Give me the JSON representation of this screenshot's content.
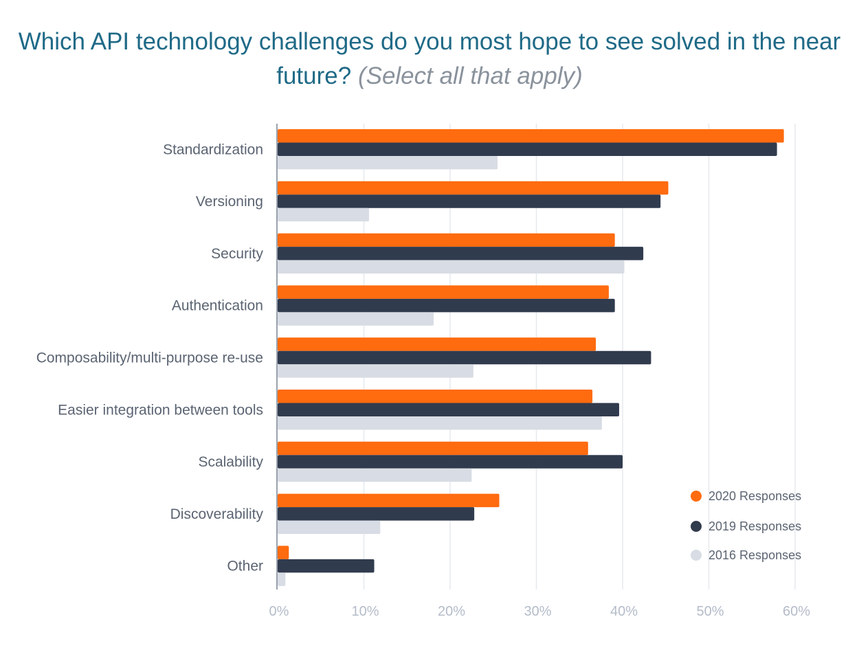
{
  "chart_data": {
    "type": "bar",
    "orientation": "horizontal",
    "title": "Which API technology challenges do you most hope to see solved in the near future?",
    "subtitle": "(Select all that apply)",
    "categories": [
      "Standardization",
      "Versioning",
      "Security",
      "Authentication",
      "Composability/multi-purpose re-use",
      "Easier integration between tools",
      "Scalability",
      "Discoverability",
      "Other"
    ],
    "series": [
      {
        "name": "2020 Responses",
        "color": "#ff6b0f",
        "values": [
          58.7,
          45.3,
          39.1,
          38.4,
          36.9,
          36.5,
          36.0,
          25.7,
          1.3
        ]
      },
      {
        "name": "2019 Responses",
        "color": "#313b4e",
        "values": [
          57.9,
          44.4,
          42.4,
          39.1,
          43.3,
          39.6,
          40.0,
          22.8,
          11.2
        ]
      },
      {
        "name": "2016 Responses",
        "color": "#d8dce4",
        "values": [
          25.5,
          10.6,
          40.2,
          18.1,
          22.7,
          37.6,
          22.5,
          11.9,
          0.9
        ]
      }
    ],
    "xticks": [
      "0%",
      "10%",
      "20%",
      "30%",
      "40%",
      "50%",
      "60%"
    ],
    "xlim": [
      0,
      60
    ],
    "grid": true,
    "legend": "bottom-right"
  }
}
